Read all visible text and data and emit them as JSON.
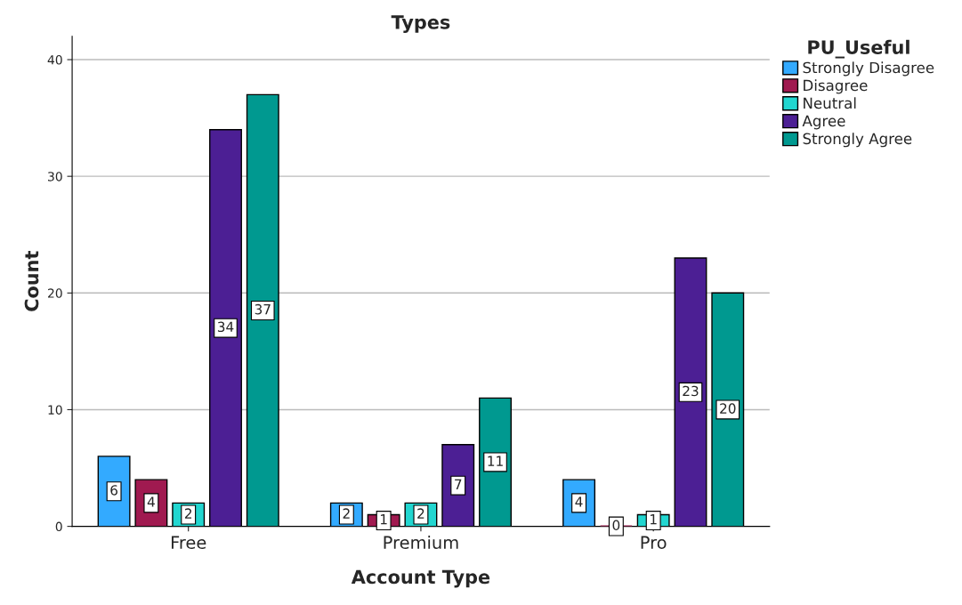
{
  "chart_data": {
    "type": "bar",
    "title": "Types",
    "xlabel": "Account Type",
    "ylabel": "Count",
    "legend_title": "PU_Useful",
    "categories": [
      "Free",
      "Premium",
      "Pro"
    ],
    "series": [
      {
        "name": "Strongly Disagree",
        "color": "#33aaff",
        "values": [
          6,
          2,
          4
        ]
      },
      {
        "name": "Disagree",
        "color": "#a01a50",
        "values": [
          4,
          1,
          0
        ]
      },
      {
        "name": "Neutral",
        "color": "#22d6d0",
        "values": [
          2,
          2,
          1
        ]
      },
      {
        "name": "Agree",
        "color": "#4c1f94",
        "values": [
          34,
          7,
          23
        ]
      },
      {
        "name": "Strongly Agree",
        "color": "#009990",
        "values": [
          37,
          11,
          20
        ]
      }
    ],
    "ylim": [
      0,
      42
    ],
    "yticks": [
      0,
      10,
      20,
      30,
      40
    ],
    "grid": "y",
    "legend": "top right",
    "data_labels": true
  }
}
